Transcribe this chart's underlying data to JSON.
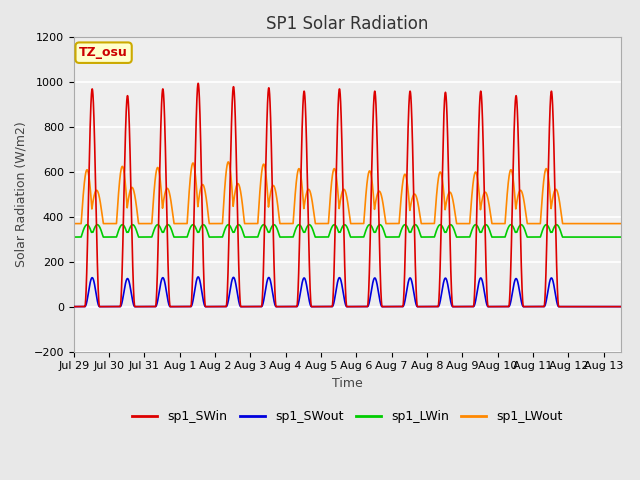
{
  "title": "SP1 Solar Radiation",
  "xlabel": "Time",
  "ylabel": "Solar Radiation (W/m2)",
  "ylim": [
    -200,
    1200
  ],
  "yticks": [
    -200,
    0,
    200,
    400,
    600,
    800,
    1000,
    1200
  ],
  "tick_labels": [
    "Jul 29",
    "Jul 30",
    "Jul 31",
    "Aug 1",
    "Aug 2",
    "Aug 3",
    "Aug 4",
    "Aug 5",
    "Aug 6",
    "Aug 7",
    "Aug 8",
    "Aug 9",
    "Aug 10",
    "Aug 11",
    "Aug 12",
    "Aug 13"
  ],
  "colors": {
    "SWin": "#dd0000",
    "SWout": "#0000dd",
    "LWin": "#00cc00",
    "LWout": "#ff8800"
  },
  "legend_labels": [
    "sp1_SWin",
    "sp1_SWout",
    "sp1_LWin",
    "sp1_LWout"
  ],
  "background_color": "#e8e8e8",
  "plot_bg_color": "#eeeeee",
  "annotation_text": "TZ_osu",
  "annotation_box_color": "#ffffcc",
  "annotation_box_edge": "#ccaa00",
  "annotation_text_color": "#cc0000",
  "title_fontsize": 12,
  "axis_label_fontsize": 9,
  "tick_fontsize": 8,
  "legend_fontsize": 9,
  "linewidth": 1.2,
  "SW_peak_vals": [
    970,
    940,
    970,
    995,
    980,
    975,
    960,
    970,
    960,
    960,
    955,
    960,
    940,
    960
  ],
  "LWout_peaks": [
    610,
    625,
    620,
    640,
    645,
    635,
    615,
    615,
    605,
    590,
    600,
    600,
    610,
    615
  ],
  "LWout_night": 370,
  "LWin_base": 310,
  "LWin_amp": 55
}
